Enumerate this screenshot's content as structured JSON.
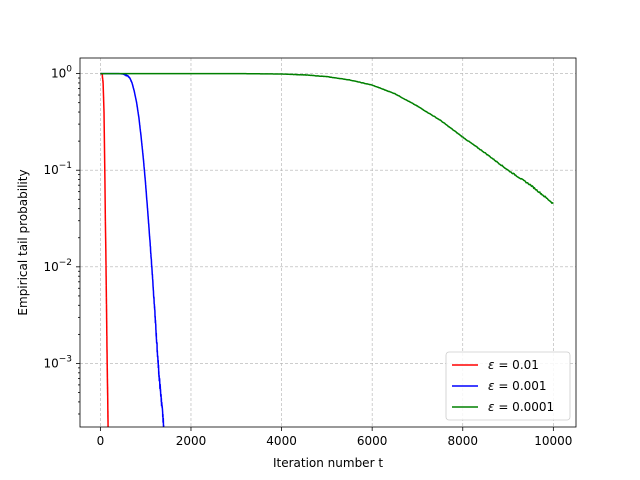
{
  "chart_data": {
    "type": "line",
    "title": "",
    "xlabel": "Iteration number t",
    "ylabel": "Empirical tail probability",
    "xlim": [
      -450,
      10500
    ],
    "ylim": [
      0.00022,
      1.45
    ],
    "yscale": "log",
    "grid": true,
    "legend_position": "lower-right",
    "x_ticks": [
      {
        "value": 0,
        "label": "0"
      },
      {
        "value": 2000,
        "label": "2000"
      },
      {
        "value": 4000,
        "label": "4000"
      },
      {
        "value": 6000,
        "label": "6000"
      },
      {
        "value": 8000,
        "label": "8000"
      },
      {
        "value": 10000,
        "label": "10000"
      }
    ],
    "y_ticks": [
      {
        "value": 0.001,
        "base": "10",
        "exp": "−3"
      },
      {
        "value": 0.01,
        "base": "10",
        "exp": "−2"
      },
      {
        "value": 0.1,
        "base": "10",
        "exp": "−1"
      },
      {
        "value": 1,
        "base": "10",
        "exp": "0"
      }
    ],
    "series": [
      {
        "label_var": "ε",
        "label_rest": " = 0.01",
        "color": "#ff0000",
        "x": [
          0,
          20,
          40,
          60,
          80,
          100,
          110,
          120,
          130,
          140,
          150,
          160,
          170
        ],
        "y": [
          1.0,
          1.0,
          0.98,
          0.8,
          0.4,
          0.08,
          0.03,
          0.015,
          0.006,
          0.0025,
          0.001,
          0.0005,
          0.00022
        ]
      },
      {
        "label_var": "ε",
        "label_rest": " = 0.001",
        "color": "#0000ff",
        "x": [
          0,
          300,
          400,
          500,
          600,
          650,
          700,
          750,
          800,
          850,
          900,
          950,
          1000,
          1050,
          1100,
          1150,
          1200,
          1250,
          1300,
          1350,
          1400
        ],
        "y": [
          1.0,
          1.0,
          1.0,
          0.99,
          0.95,
          0.9,
          0.8,
          0.65,
          0.5,
          0.35,
          0.22,
          0.13,
          0.07,
          0.035,
          0.017,
          0.008,
          0.0035,
          0.0015,
          0.0007,
          0.0004,
          0.00022
        ]
      },
      {
        "label_var": "ε",
        "label_rest": " = 0.0001",
        "color": "#008000",
        "x": [
          0,
          1000,
          2000,
          3000,
          4000,
          4500,
          5000,
          5500,
          6000,
          6500,
          7000,
          7500,
          8000,
          8500,
          9000,
          9500,
          10000
        ],
        "y": [
          1.0,
          1.0,
          1.0,
          1.0,
          0.99,
          0.97,
          0.93,
          0.86,
          0.76,
          0.62,
          0.46,
          0.33,
          0.22,
          0.15,
          0.1,
          0.07,
          0.045
        ]
      }
    ]
  }
}
